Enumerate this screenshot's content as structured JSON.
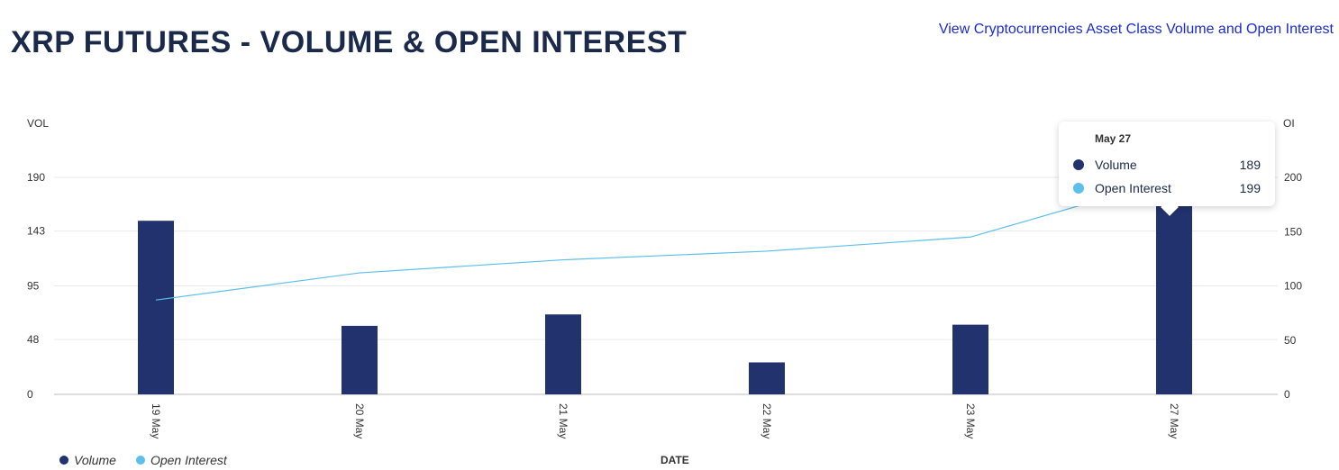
{
  "header": {
    "title": "XRP FUTURES - VOLUME & OPEN INTEREST",
    "link_label": "View Cryptocurrencies Asset Class Volume and Open Interest"
  },
  "colors": {
    "volume": "#22326e",
    "open_interest": "#5bc0eb",
    "grid": "#e9e9e9"
  },
  "chart_data": {
    "type": "bar",
    "categories": [
      "19 May",
      "20 May",
      "21 May",
      "22 May",
      "23 May",
      "27 May"
    ],
    "xlabel": "DATE",
    "y_left": {
      "label": "VOL",
      "ticks": [
        "0",
        "48",
        "95",
        "143",
        "190"
      ],
      "range": [
        0,
        190
      ]
    },
    "y_right": {
      "label": "OI",
      "ticks": [
        "0",
        "50",
        "100",
        "150",
        "200"
      ],
      "range": [
        0,
        200
      ]
    },
    "series": [
      {
        "name": "Volume",
        "kind": "bar",
        "axis": "left",
        "values": [
          152,
          60,
          70,
          28,
          61,
          189
        ]
      },
      {
        "name": "Open Interest",
        "kind": "line",
        "axis": "right",
        "values": [
          87,
          112,
          124,
          132,
          145,
          199
        ]
      }
    ],
    "legend": {
      "position": "bottom-left"
    },
    "grid": true
  },
  "legend": {
    "volume_label": "Volume",
    "open_interest_label": "Open Interest"
  },
  "tooltip": {
    "title": "May 27",
    "rows": [
      {
        "label": "Volume",
        "value": "189"
      },
      {
        "label": "Open Interest",
        "value": "199"
      }
    ]
  }
}
